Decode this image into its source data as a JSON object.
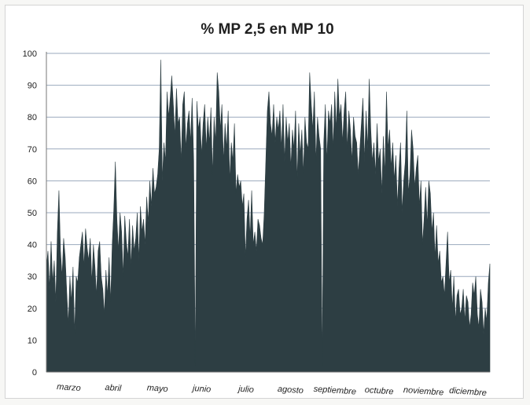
{
  "chart_data": {
    "type": "area",
    "title": "% MP 2,5 en MP 10",
    "xlabel": "",
    "ylabel": "",
    "ylim": [
      0,
      100
    ],
    "yticks": [
      "0",
      "10",
      "20",
      "30",
      "40",
      "50",
      "60",
      "70",
      "80",
      "90",
      "100"
    ],
    "months": [
      "marzo",
      "abril",
      "mayo",
      "junio",
      "julio",
      "agosto",
      "septiembre",
      "octubre",
      "noviembre",
      "diciembre"
    ],
    "grid": true,
    "legend": "none",
    "fill_color": "#2d3e43",
    "grid_color": "#9aa9bd",
    "values": [
      33,
      38,
      26,
      41,
      28,
      35,
      22,
      44,
      57,
      38,
      30,
      42,
      36,
      25,
      15,
      30,
      22,
      33,
      12,
      30,
      28,
      36,
      40,
      44,
      33,
      45,
      39,
      35,
      42,
      28,
      40,
      33,
      24,
      38,
      41,
      30,
      26,
      18,
      32,
      24,
      36,
      22,
      40,
      51,
      66,
      48,
      38,
      50,
      44,
      30,
      49,
      41,
      36,
      48,
      33,
      46,
      38,
      42,
      50,
      35,
      52,
      44,
      48,
      40,
      55,
      47,
      60,
      52,
      64,
      56,
      58,
      62,
      70,
      98,
      60,
      72,
      66,
      88,
      80,
      86,
      93,
      84,
      74,
      89,
      78,
      80,
      66,
      84,
      88,
      70,
      78,
      82,
      72,
      86,
      66,
      2,
      85,
      76,
      80,
      68,
      78,
      84,
      70,
      80,
      72,
      83,
      62,
      80,
      72,
      94,
      88,
      76,
      84,
      66,
      78,
      70,
      82,
      60,
      72,
      66,
      78,
      56,
      62,
      58,
      60,
      52,
      56,
      36,
      48,
      54,
      42,
      57,
      40,
      44,
      38,
      48,
      46,
      42,
      40,
      50,
      66,
      82,
      88,
      78,
      74,
      84,
      72,
      80,
      76,
      82,
      70,
      84,
      66,
      80,
      72,
      78,
      64,
      76,
      70,
      82,
      60,
      78,
      68,
      76,
      62,
      80,
      72,
      70,
      94,
      84,
      76,
      88,
      66,
      80,
      74,
      70,
      2,
      72,
      84,
      66,
      82,
      78,
      84,
      70,
      88,
      76,
      92,
      80,
      84,
      72,
      82,
      88,
      70,
      82,
      76,
      66,
      80,
      74,
      72,
      62,
      70,
      78,
      86,
      66,
      82,
      70,
      92,
      76,
      66,
      72,
      62,
      78,
      66,
      70,
      56,
      74,
      62,
      88,
      70,
      76,
      64,
      72,
      60,
      68,
      52,
      64,
      72,
      50,
      60,
      66,
      82,
      56,
      62,
      76,
      70,
      58,
      64,
      68,
      52,
      60,
      40,
      48,
      58,
      46,
      60,
      56,
      44,
      50,
      36,
      46,
      34,
      38,
      28,
      30,
      24,
      34,
      44,
      28,
      32,
      20,
      30,
      16,
      24,
      26,
      18,
      20,
      26,
      16,
      24,
      22,
      14,
      18,
      28,
      24,
      30,
      18,
      14,
      26,
      22,
      12,
      20,
      16,
      28,
      34
    ]
  }
}
